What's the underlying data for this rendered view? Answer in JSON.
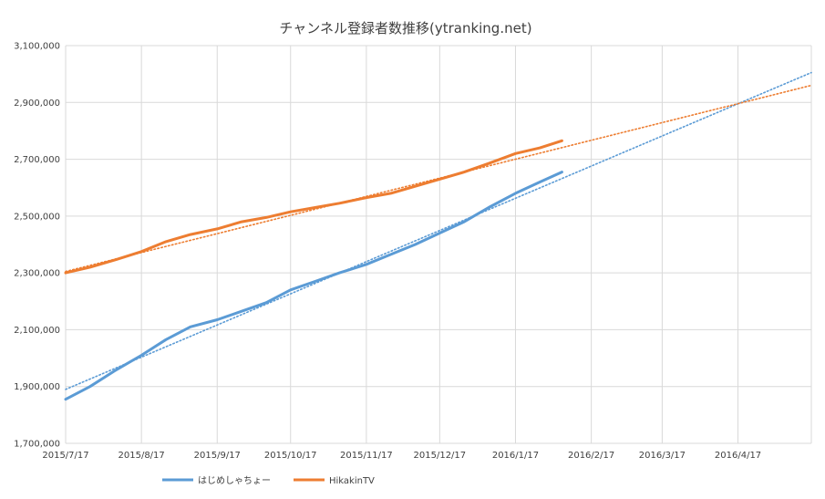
{
  "chart_data": {
    "type": "line",
    "title": "チャンネル登録者数推移(ytranking.net)",
    "xlabel": "",
    "ylabel": "",
    "x_ticks": [
      "2015/7/17",
      "2015/8/17",
      "2015/9/17",
      "2015/10/17",
      "2015/11/17",
      "2015/12/17",
      "2016/1/17",
      "2016/2/17",
      "2016/3/17",
      "2016/4/17"
    ],
    "y_ticks": [
      "1,700,000",
      "1,900,000",
      "2,100,000",
      "2,300,000",
      "2,500,000",
      "2,700,000",
      "2,900,000",
      "3,100,000"
    ],
    "xlim": [
      "2015-07-17",
      "2016-05-17"
    ],
    "ylim": [
      1700000,
      3100000
    ],
    "grid": true,
    "legend_position": "bottom-left",
    "series": [
      {
        "name": "はじめしゃちょー",
        "color": "#5b9bd5",
        "style": "solid",
        "x": [
          "2015-07-17",
          "2015-07-27",
          "2015-08-06",
          "2015-08-17",
          "2015-08-27",
          "2015-09-06",
          "2015-09-17",
          "2015-09-27",
          "2015-10-07",
          "2015-10-17",
          "2015-10-27",
          "2015-11-06",
          "2015-11-17",
          "2015-11-27",
          "2015-12-07",
          "2015-12-17",
          "2015-12-27",
          "2016-01-06",
          "2016-01-17",
          "2016-01-27",
          "2016-02-05"
        ],
        "values": [
          1855000,
          1900000,
          1955000,
          2010000,
          2065000,
          2110000,
          2135000,
          2165000,
          2195000,
          2240000,
          2270000,
          2300000,
          2330000,
          2365000,
          2400000,
          2440000,
          2480000,
          2530000,
          2580000,
          2620000,
          2655000
        ]
      },
      {
        "name": "HikakinTV",
        "color": "#ed7d31",
        "style": "solid",
        "x": [
          "2015-07-17",
          "2015-07-27",
          "2015-08-06",
          "2015-08-17",
          "2015-08-27",
          "2015-09-06",
          "2015-09-17",
          "2015-09-27",
          "2015-10-07",
          "2015-10-17",
          "2015-10-27",
          "2015-11-06",
          "2015-11-17",
          "2015-11-27",
          "2015-12-07",
          "2015-12-17",
          "2015-12-27",
          "2016-01-06",
          "2016-01-17",
          "2016-01-27",
          "2016-02-05"
        ],
        "values": [
          2300000,
          2320000,
          2345000,
          2375000,
          2410000,
          2435000,
          2455000,
          2480000,
          2495000,
          2515000,
          2530000,
          2545000,
          2565000,
          2580000,
          2605000,
          2630000,
          2655000,
          2685000,
          2720000,
          2740000,
          2765000
        ]
      }
    ],
    "trendlines": [
      {
        "series": "はじめしゃちょー",
        "color": "#5b9bd5",
        "style": "dotted",
        "x": [
          "2015-07-17",
          "2016-05-17"
        ],
        "values": [
          1890000,
          3005000
        ]
      },
      {
        "series": "HikakinTV",
        "color": "#ed7d31",
        "style": "dotted",
        "x": [
          "2015-07-17",
          "2016-05-17"
        ],
        "values": [
          2305000,
          2960000
        ]
      }
    ]
  }
}
